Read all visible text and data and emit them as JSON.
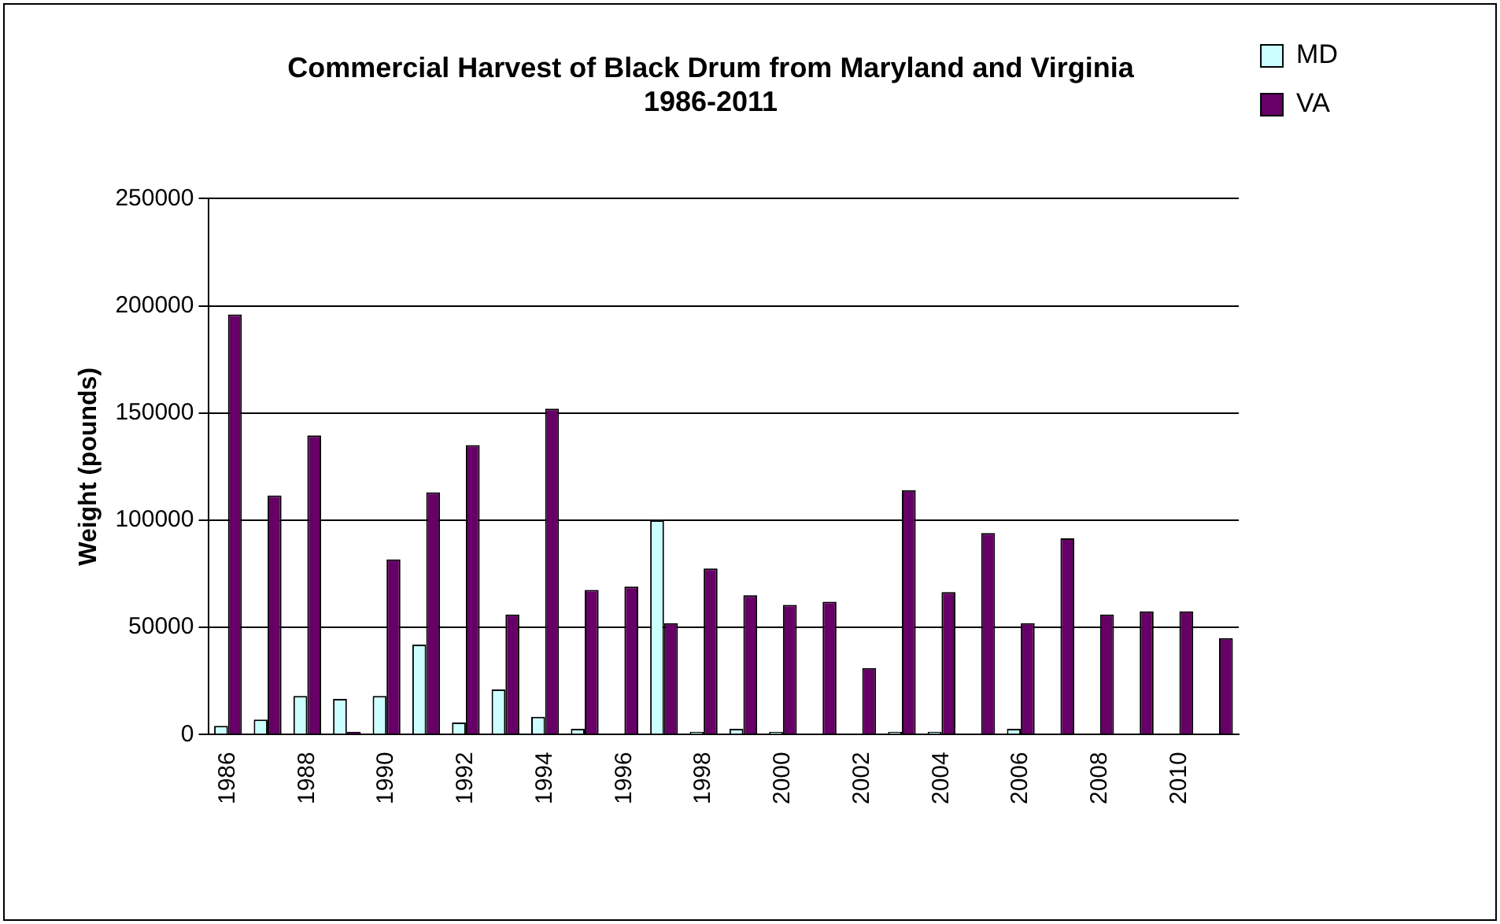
{
  "chart_data": {
    "type": "bar",
    "title": "Commercial Harvest of Black Drum from Maryland and Virginia",
    "subtitle": "1986-2011",
    "ylabel": "Weight (pounds)",
    "categories": [
      "1986",
      null,
      "1988",
      null,
      "1990",
      null,
      "1992",
      null,
      "1994",
      null,
      "1996",
      null,
      "1998",
      null,
      "2000",
      null,
      "2002",
      null,
      "2004",
      null,
      "2006",
      null,
      "2008",
      null,
      "2010",
      null
    ],
    "series": [
      {
        "name": "MD",
        "color": "#ccffff",
        "values": [
          4000,
          7000,
          18000,
          16600,
          18000,
          42000,
          5600,
          21000,
          8300,
          2700,
          0,
          100000,
          1300,
          2700,
          1300,
          0,
          0,
          1300,
          1300,
          0,
          2700,
          0,
          0,
          0,
          0,
          0
        ]
      },
      {
        "name": "VA",
        "color": "#660066",
        "values": [
          196000,
          111500,
          139500,
          1300,
          81700,
          113000,
          135000,
          56000,
          152000,
          67500,
          69000,
          52000,
          77500,
          65000,
          60500,
          62000,
          31000,
          114000,
          66500,
          94000,
          52000,
          91500,
          56000,
          57500,
          57500,
          45000
        ]
      }
    ],
    "ylim": [
      0,
      250000
    ],
    "yticks": [
      0,
      50000,
      100000,
      150000,
      200000,
      250000
    ],
    "grid": "y",
    "legend": "right"
  }
}
